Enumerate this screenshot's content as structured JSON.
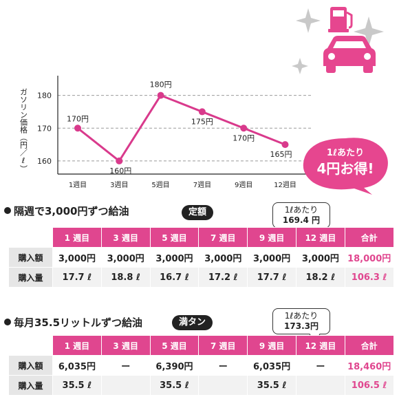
{
  "chart_data": {
    "type": "line",
    "ylabel": "ガソリン価格（円／ℓ）",
    "categories": [
      "1週目",
      "3週目",
      "5週目",
      "7週目",
      "9週目",
      "12週目"
    ],
    "values": [
      170,
      160,
      180,
      175,
      170,
      165
    ],
    "data_labels": [
      "170円",
      "160円",
      "180円",
      "175円",
      "170円",
      "165円"
    ],
    "yticks": [
      160,
      170,
      180
    ],
    "ylim": [
      156,
      186
    ],
    "grid": true,
    "line_color": "#d93a8c"
  },
  "promo": {
    "line1": "1ℓあたり",
    "line2": "4円お得!",
    "color": "#e6468f"
  },
  "section1": {
    "title": "隔週で3,000円ずつ給油",
    "badge": "定額",
    "callout_line1": "1ℓあたり",
    "callout_line2": "169.4 円",
    "headers": [
      "1 週目",
      "3 週目",
      "5 週目",
      "7 週目",
      "9 週目",
      "12 週目",
      "合計"
    ],
    "rows": [
      {
        "label": "購入額",
        "cells": [
          "3,000円",
          "3,000円",
          "3,000円",
          "3,000円",
          "3,000円",
          "3,000円",
          "18,000円"
        ]
      },
      {
        "label": "購入量",
        "cells": [
          "17.7 ℓ",
          "18.8 ℓ",
          "16.7 ℓ",
          "17.2 ℓ",
          "17.7 ℓ",
          "18.2 ℓ",
          "106.3 ℓ"
        ]
      }
    ]
  },
  "section2": {
    "title": "毎月35.5リットルずつ給油",
    "badge": "満タン",
    "callout_line1": "1ℓあたり",
    "callout_line2": "173.3円",
    "headers": [
      "1 週目",
      "3 週目",
      "5 週目",
      "7 週目",
      "9 週目",
      "12 週目",
      "合計"
    ],
    "rows": [
      {
        "label": "購入額",
        "cells": [
          "6,035円",
          "ー",
          "6,390円",
          "ー",
          "6,035円",
          "ー",
          "18,460円"
        ]
      },
      {
        "label": "購入量",
        "cells": [
          "35.5 ℓ",
          "",
          "35.5 ℓ",
          "",
          "35.5 ℓ",
          "",
          "106.5 ℓ"
        ]
      }
    ]
  },
  "icons": [
    "sparkle-icon",
    "fuel-pump-icon",
    "car-icon"
  ],
  "accent_color": "#e0468f"
}
